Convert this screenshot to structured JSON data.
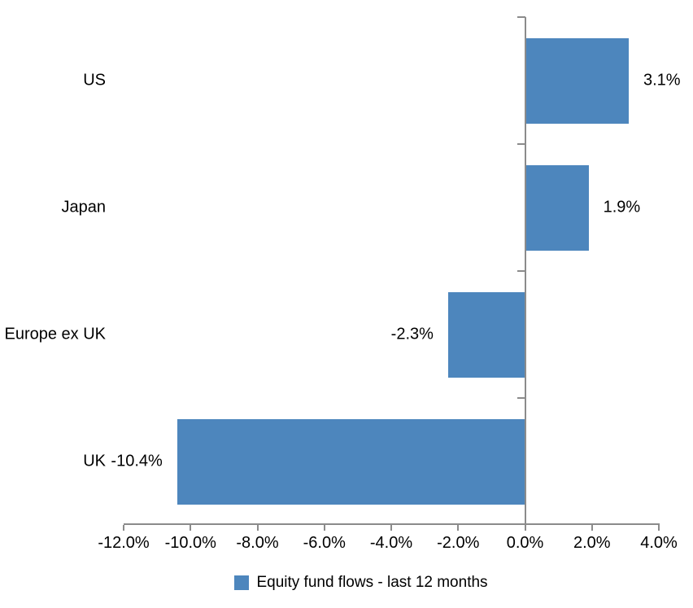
{
  "chart_data": {
    "type": "bar",
    "orientation": "horizontal",
    "title": "",
    "categories": [
      "US",
      "Japan",
      "Europe ex UK",
      "UK"
    ],
    "series": [
      {
        "name": "Equity fund flows - last 12 months",
        "values": [
          3.1,
          1.9,
          -2.3,
          -10.4
        ],
        "data_labels": [
          "3.1%",
          "1.9%",
          "-2.3%",
          "-10.4%"
        ]
      }
    ],
    "xlabel": "",
    "ylabel": "",
    "xlim": [
      -12,
      4
    ],
    "x_ticks": [
      {
        "value": -12,
        "label": "-12.0%"
      },
      {
        "value": -10,
        "label": "-10.0%"
      },
      {
        "value": -8,
        "label": "-8.0%"
      },
      {
        "value": -6,
        "label": "-6.0%"
      },
      {
        "value": -4,
        "label": "-4.0%"
      },
      {
        "value": -2,
        "label": "-2.0%"
      },
      {
        "value": 0,
        "label": "0.0%"
      },
      {
        "value": 2,
        "label": "2.0%"
      },
      {
        "value": 4,
        "label": "4.0%"
      }
    ],
    "grid": false,
    "legend": {
      "position": "bottom",
      "label": "Equity fund flows - last 12 months"
    },
    "colors": {
      "bar": "#4D86BD",
      "axis": "#8B8B8B",
      "text": "#000000",
      "background": "#FFFFFF"
    }
  }
}
